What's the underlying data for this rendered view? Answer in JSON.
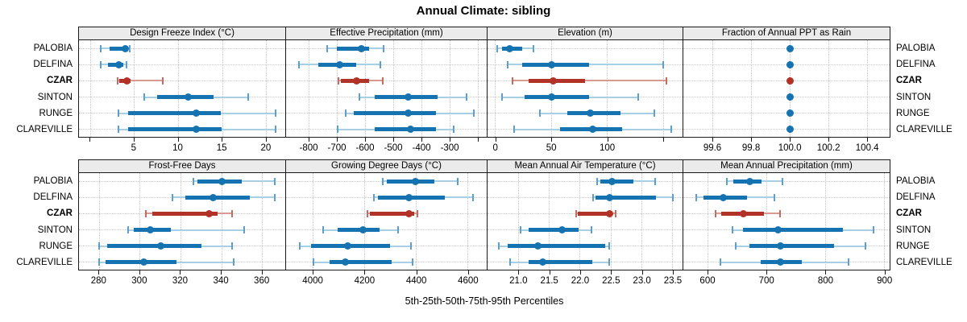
{
  "title": "Annual Climate: sibling",
  "caption": "5th-25th-50th-75th-95th Percentiles",
  "colors": {
    "normal": "#1673b1",
    "normal_light": "#a9cfe7",
    "normal_cap": "#5d9fcd",
    "highlight": "#b23228",
    "highlight_light": "#d89a93",
    "highlight_cap": "#c66b61",
    "strip_bg": "#ebebeb",
    "border": "#1a1a1a",
    "grid": "#c9c9c9"
  },
  "chart_data": {
    "type": "scatter",
    "style": "horizontal-percentile-errorbars",
    "title": "Annual Climate: sibling",
    "caption": "5th-25th-50th-75th-95th Percentiles",
    "percentiles": [
      5,
      25,
      50,
      75,
      95
    ],
    "categories": [
      "PALOBIA",
      "DELFINA",
      "CZAR",
      "SINTON",
      "RUNGE",
      "CLAREVILLE"
    ],
    "highlight": "CZAR",
    "legend_position": "none",
    "grid": "dotted",
    "panels": [
      {
        "title": "Design Freeze Index (°C)",
        "xlim": [
          -1.3,
          22.3
        ],
        "ticks": [
          0,
          5,
          10,
          15,
          20
        ],
        "tick_labels": [
          "",
          "5",
          "10",
          "15",
          "20"
        ],
        "values": [
          [
            1.2,
            2.2,
            4.0,
            4.3,
            4.5
          ],
          [
            1.2,
            2.0,
            3.2,
            3.7,
            4.1
          ],
          [
            3.1,
            3.3,
            4.1,
            4.6,
            8.2
          ],
          [
            6.1,
            7.6,
            11.1,
            14.0,
            17.9
          ],
          [
            3.2,
            4.3,
            12.0,
            14.8,
            21.0
          ],
          [
            3.2,
            4.3,
            12.0,
            14.9,
            21.0
          ]
        ]
      },
      {
        "title": "Effective Precipitation (mm)",
        "xlim": [
          -880,
          -166
        ],
        "ticks": [
          -800,
          -700,
          -600,
          -500,
          -400,
          -300,
          -200
        ],
        "tick_labels": [
          "-800",
          "-700",
          "-600",
          "-500",
          "-400",
          "-300",
          ""
        ],
        "values": [
          [
            -734,
            -700,
            -614,
            -586,
            -534
          ],
          [
            -834,
            -765,
            -689,
            -631,
            -545
          ],
          [
            -694,
            -686,
            -631,
            -586,
            -537
          ],
          [
            -620,
            -566,
            -446,
            -343,
            -240
          ],
          [
            -669,
            -640,
            -446,
            -350,
            -215
          ],
          [
            -697,
            -565,
            -440,
            -350,
            -285
          ]
        ]
      },
      {
        "title": "Elevation (m)",
        "xlim": [
          -7,
          168
        ],
        "ticks": [
          0,
          50,
          100,
          150
        ],
        "tick_labels": [
          "0",
          "50",
          "100",
          ""
        ],
        "values": [
          [
            2,
            6,
            13,
            24,
            34
          ],
          [
            11,
            24,
            50,
            84,
            150
          ],
          [
            15,
            30,
            52,
            80,
            153
          ],
          [
            6,
            26,
            50,
            84,
            128
          ],
          [
            40,
            64,
            85,
            112,
            142
          ],
          [
            17,
            58,
            87,
            113,
            157
          ]
        ]
      },
      {
        "title": "Fraction of Annual PPT as Rain",
        "xlim": [
          99.45,
          100.52
        ],
        "ticks": [
          99.6,
          99.8,
          100.0,
          100.2,
          100.4
        ],
        "tick_labels": [
          "99.6",
          "99.8",
          "100.0",
          "100.2",
          "100.4"
        ],
        "values": [
          [
            100,
            100,
            100,
            100,
            100
          ],
          [
            100,
            100,
            100,
            100,
            100
          ],
          [
            100,
            100,
            100,
            100,
            100
          ],
          [
            100,
            100,
            100,
            100,
            100
          ],
          [
            100,
            100,
            100,
            100,
            100
          ],
          [
            100,
            100,
            100,
            100,
            100
          ]
        ]
      },
      {
        "title": "Frost-Free Days",
        "xlim": [
          270,
          372
        ],
        "ticks": [
          280,
          300,
          320,
          340,
          360
        ],
        "tick_labels": [
          "280",
          "300",
          "320",
          "340",
          "360"
        ],
        "values": [
          [
            326,
            328,
            340,
            350,
            366
          ],
          [
            316,
            322,
            336,
            354,
            366
          ],
          [
            303,
            306,
            334,
            338,
            345
          ],
          [
            294,
            297,
            305,
            315,
            351
          ],
          [
            280,
            284,
            310,
            330,
            345
          ],
          [
            280,
            283,
            302,
            318,
            346
          ]
        ]
      },
      {
        "title": "Growing Degree Days (°C)",
        "xlim": [
          3897,
          4675
        ],
        "ticks": [
          4000,
          4200,
          4400,
          4600
        ],
        "tick_labels": [
          "4000",
          "4200",
          "4400",
          "4600"
        ],
        "values": [
          [
            4270,
            4285,
            4395,
            4470,
            4560
          ],
          [
            4237,
            4253,
            4371,
            4511,
            4620
          ],
          [
            4212,
            4220,
            4373,
            4392,
            4403
          ],
          [
            4040,
            4095,
            4195,
            4258,
            4330
          ],
          [
            3950,
            3995,
            4135,
            4300,
            4380
          ],
          [
            4003,
            4065,
            4127,
            4305,
            4385
          ]
        ]
      },
      {
        "title": "Mean Annual Air Temperature (°C)",
        "xlim": [
          20.5,
          23.67
        ],
        "ticks": [
          21.0,
          21.5,
          22.0,
          22.5,
          23.0,
          23.5
        ],
        "tick_labels": [
          "21.0",
          "21.5",
          "22.0",
          "22.5",
          "23.0",
          "23.5"
        ],
        "values": [
          [
            22.28,
            22.33,
            22.51,
            22.86,
            23.21
          ],
          [
            22.21,
            22.25,
            22.47,
            23.23,
            23.5
          ],
          [
            21.94,
            21.96,
            22.47,
            22.5,
            22.57
          ],
          [
            21.04,
            21.16,
            21.71,
            21.97,
            22.18
          ],
          [
            20.68,
            20.83,
            21.31,
            22.4,
            22.47
          ],
          [
            20.87,
            21.16,
            21.4,
            22.19,
            22.47
          ]
        ]
      },
      {
        "title": "Mean Annual Precipitation (mm)",
        "xlim": [
          559,
          910
        ],
        "ticks": [
          600,
          700,
          800,
          900
        ],
        "tick_labels": [
          "600",
          "700",
          "800",
          "900"
        ],
        "values": [
          [
            633,
            644,
            672,
            691,
            727
          ],
          [
            581,
            593,
            626,
            667,
            714
          ],
          [
            614,
            623,
            661,
            696,
            723
          ],
          [
            642,
            660,
            719,
            830,
            881
          ],
          [
            648,
            671,
            723,
            814,
            867
          ],
          [
            622,
            690,
            724,
            760,
            839
          ]
        ]
      }
    ]
  }
}
